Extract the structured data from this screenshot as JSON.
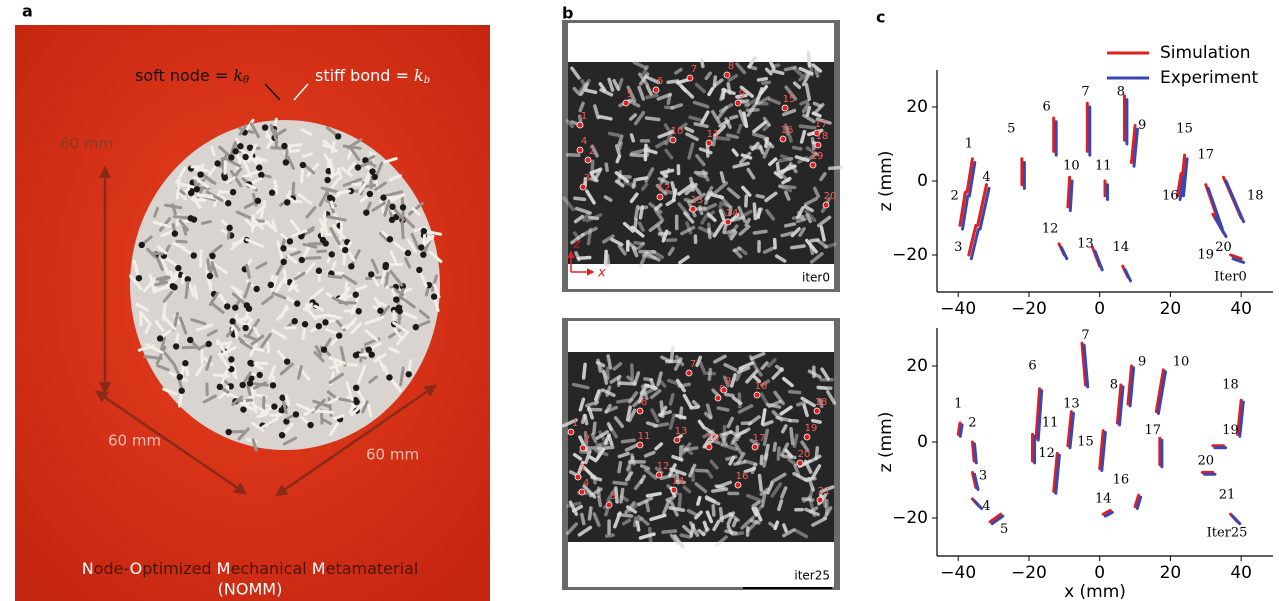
{
  "panel_a": {
    "label": "a",
    "soft_node": {
      "text": "soft node = ",
      "symbol": "k",
      "subscript": "θ"
    },
    "stiff_bond": {
      "text": "stiff bond = ",
      "symbol": "k",
      "subscript": "b"
    },
    "dimensions": [
      "60 mm",
      "60 mm",
      "60 mm"
    ],
    "title_parts": [
      "N",
      "ode-",
      "O",
      "ptimized ",
      "M",
      "echanical ",
      "M",
      "etamaterial"
    ],
    "subtitle": "(NOMM)"
  },
  "panel_b": {
    "label": "b",
    "axes": {
      "z": "z",
      "x": "x"
    },
    "images": [
      {
        "caption": "iter0",
        "markers": [
          "1",
          "2",
          "3",
          "4",
          "5",
          "6",
          "7",
          "8",
          "9",
          "10",
          "11",
          "12",
          "13",
          "14",
          "15",
          "16",
          "17",
          "18",
          "19",
          "20"
        ]
      },
      {
        "caption": "iter25",
        "markers": [
          "1",
          "2",
          "3",
          "4",
          "5",
          "6",
          "7",
          "8",
          "9",
          "10",
          "11",
          "12",
          "13",
          "14",
          "15",
          "16",
          "17",
          "18",
          "19",
          "20",
          "21"
        ]
      }
    ]
  },
  "panel_c": {
    "label": "c"
  },
  "chart_data": [
    {
      "type": "line",
      "ylabel": "z (mm)",
      "legend": "upper right",
      "xlim": [
        -46,
        49
      ],
      "ylim": [
        -30,
        30
      ],
      "xticks": [
        {
          "value": -40,
          "label": "−40"
        },
        {
          "value": -20,
          "label": "−20"
        },
        0,
        20,
        40
      ],
      "yticks": [
        {
          "value": -20,
          "label": "−20"
        },
        0,
        20
      ],
      "series": [
        {
          "name": "Simulation",
          "color": "#e02020",
          "x": [
            -37.5,
            -36,
            null,
            -39.5,
            -38,
            null,
            -37,
            -35,
            null,
            -34.5,
            -32,
            null,
            -22,
            -22,
            null,
            -13,
            -13,
            null,
            -3.5,
            -3.5,
            null,
            7,
            7,
            null,
            9,
            10,
            null,
            -9,
            -8.5,
            null,
            1.5,
            1.5,
            null,
            -11.5,
            -10,
            null,
            -2,
            0,
            null,
            6.5,
            8,
            null,
            23,
            24,
            null,
            22,
            23,
            null,
            30,
            34,
            null,
            35,
            40,
            null,
            32,
            35,
            null,
            37,
            40
          ],
          "values": [
            -3,
            6,
            null,
            -12,
            -3,
            null,
            -20,
            -12,
            null,
            -12,
            -1,
            null,
            -1,
            6,
            null,
            8,
            17,
            null,
            8,
            21,
            null,
            11,
            23,
            null,
            5,
            15,
            null,
            -7,
            1,
            null,
            -4,
            0,
            null,
            -17,
            -20,
            null,
            -18,
            -23,
            null,
            -23,
            -26,
            null,
            -3,
            7,
            null,
            -4,
            2,
            null,
            -1,
            -12,
            null,
            1,
            -10,
            null,
            -9,
            -14,
            null,
            -20,
            -21
          ]
        },
        {
          "name": "Experiment",
          "color": "#3a47b0",
          "x": [
            -36.8,
            -35.3,
            null,
            -38.8,
            -37.3,
            null,
            -36.3,
            -34.3,
            null,
            -33.8,
            -31.3,
            null,
            -21.3,
            -21.3,
            null,
            -12.3,
            -12.3,
            null,
            -2.8,
            -2.8,
            null,
            7.7,
            7.7,
            null,
            9.7,
            10.7,
            null,
            -8.3,
            -7.8,
            null,
            2.2,
            2.2,
            null,
            -10.8,
            -9.3,
            null,
            -1.3,
            0.7,
            null,
            7.2,
            8.7,
            null,
            23.7,
            24.7,
            null,
            22.7,
            23.7,
            null,
            30.7,
            34.7,
            null,
            35.7,
            40.7,
            null,
            32.7,
            35.7,
            null,
            37.7,
            40.7
          ],
          "values": [
            -4,
            5,
            null,
            -13,
            -4,
            null,
            -21,
            -13,
            null,
            -13,
            -2,
            null,
            -2,
            5,
            null,
            7,
            16,
            null,
            7,
            20,
            null,
            10,
            22,
            null,
            4,
            14,
            null,
            -8,
            0,
            null,
            -5,
            -1,
            null,
            -18,
            -21,
            null,
            -19,
            -24,
            null,
            -24,
            -27,
            null,
            -4,
            6,
            null,
            -5,
            1,
            null,
            -2,
            -13,
            null,
            0,
            -11,
            null,
            -10,
            -15,
            null,
            -21,
            -22
          ]
        }
      ],
      "annotations": [
        {
          "text": "1",
          "x": -37,
          "y": 10
        },
        {
          "text": "2",
          "x": -41,
          "y": -4
        },
        {
          "text": "3",
          "x": -40,
          "y": -18
        },
        {
          "text": "4",
          "x": -32,
          "y": 1
        },
        {
          "text": "5",
          "x": -25,
          "y": 14
        },
        {
          "text": "6",
          "x": -15,
          "y": 20
        },
        {
          "text": "7",
          "x": -4,
          "y": 24
        },
        {
          "text": "8",
          "x": 6,
          "y": 24
        },
        {
          "text": "9",
          "x": 12,
          "y": 15
        },
        {
          "text": "10",
          "x": -8,
          "y": 4
        },
        {
          "text": "11",
          "x": 1,
          "y": 4
        },
        {
          "text": "12",
          "x": -14,
          "y": -13
        },
        {
          "text": "13",
          "x": -4,
          "y": -17
        },
        {
          "text": "14",
          "x": 6,
          "y": -18
        },
        {
          "text": "15",
          "x": 24,
          "y": 14
        },
        {
          "text": "16",
          "x": 20,
          "y": -4
        },
        {
          "text": "17",
          "x": 30,
          "y": 7
        },
        {
          "text": "18",
          "x": 44,
          "y": -4
        },
        {
          "text": "19",
          "x": 30,
          "y": -20
        },
        {
          "text": "20",
          "x": 35,
          "y": -18
        },
        {
          "text": "Iter0",
          "x": 37,
          "y": -26
        }
      ]
    },
    {
      "type": "line",
      "ylabel": "z (mm)",
      "xlabel": "x (mm)",
      "xlim": [
        -46,
        49
      ],
      "ylim": [
        -30,
        30
      ],
      "xticks": [
        {
          "value": -40,
          "label": "−40"
        },
        {
          "value": -20,
          "label": "−20"
        },
        0,
        20,
        40
      ],
      "yticks": [
        {
          "value": -20,
          "label": "−20"
        },
        0,
        20
      ],
      "series": [
        {
          "color": "#e02020",
          "x": [
            -40,
            -39.5,
            null,
            -36,
            -35.5,
            null,
            -36,
            -35,
            null,
            -36,
            -34,
            null,
            -31,
            -28,
            null,
            -18,
            -17,
            null,
            -4,
            -5,
            null,
            5,
            6,
            null,
            8,
            9,
            null,
            16,
            18,
            null,
            -19,
            -19,
            null,
            -13,
            -12,
            null,
            -9,
            -8,
            null,
            1,
            3,
            null,
            0,
            1,
            null,
            10,
            11,
            null,
            17,
            17,
            null,
            39,
            40,
            null,
            32,
            35,
            null,
            29,
            32,
            null,
            37,
            39
          ],
          "values": [
            2,
            5,
            null,
            0,
            -5,
            null,
            -8,
            -12,
            null,
            -15,
            -17,
            null,
            -21,
            -19,
            null,
            1,
            14,
            null,
            15,
            26,
            null,
            5,
            15,
            null,
            10,
            20,
            null,
            8,
            19,
            null,
            -5,
            2,
            null,
            -13,
            -3,
            null,
            -1,
            8,
            null,
            -19,
            -18,
            null,
            -7,
            3,
            null,
            -17,
            -14,
            null,
            -6,
            1,
            null,
            2,
            11,
            null,
            -1,
            -1,
            null,
            -8,
            -8,
            null,
            -19,
            -21
          ]
        },
        {
          "color": "#3a47b0",
          "x": [
            -39.4,
            -38.9,
            null,
            -35.4,
            -34.9,
            null,
            -35.4,
            -34.4,
            null,
            -35.4,
            -33.4,
            null,
            -30.4,
            -27.4,
            null,
            -17.4,
            -16.4,
            null,
            -3.4,
            -4.4,
            null,
            5.6,
            6.6,
            null,
            8.6,
            9.6,
            null,
            16.6,
            18.6,
            null,
            -18.4,
            -18.4,
            null,
            -12.4,
            -11.4,
            null,
            -8.4,
            -7.4,
            null,
            1.6,
            3.6,
            null,
            0.6,
            1.6,
            null,
            10.6,
            11.6,
            null,
            17.6,
            17.6,
            null,
            39.6,
            40.6,
            null,
            32.6,
            35.6,
            null,
            29.6,
            32.6,
            null,
            37.6,
            39.6
          ],
          "values": [
            1.5,
            4.5,
            null,
            -0.5,
            -5.5,
            null,
            -8.5,
            -12.5,
            null,
            -15.5,
            -17.5,
            null,
            -21.5,
            -19.5,
            null,
            0.5,
            13.5,
            null,
            14.5,
            25.5,
            null,
            4.5,
            14.5,
            null,
            9.5,
            19.5,
            null,
            7.5,
            18.5,
            null,
            -5.5,
            1.5,
            null,
            -13.5,
            -3.5,
            null,
            -1.5,
            7.5,
            null,
            -19.5,
            -18.5,
            null,
            -7.5,
            2.5,
            null,
            -17.5,
            -14.5,
            null,
            -6.5,
            0.5,
            null,
            1.5,
            10.5,
            null,
            -1.5,
            -1.5,
            null,
            -8.5,
            -8.5,
            null,
            -19.5,
            -21.5
          ]
        }
      ],
      "annotations": [
        {
          "text": "1",
          "x": -40,
          "y": 10
        },
        {
          "text": "2",
          "x": -36,
          "y": 5
        },
        {
          "text": "3",
          "x": -33,
          "y": -9
        },
        {
          "text": "4",
          "x": -32,
          "y": -17
        },
        {
          "text": "5",
          "x": -27,
          "y": -23
        },
        {
          "text": "6",
          "x": -19,
          "y": 20
        },
        {
          "text": "7",
          "x": -4,
          "y": 28
        },
        {
          "text": "8",
          "x": 4,
          "y": 15
        },
        {
          "text": "9",
          "x": 12,
          "y": 21
        },
        {
          "text": "10",
          "x": 23,
          "y": 21
        },
        {
          "text": "11",
          "x": -14,
          "y": 5
        },
        {
          "text": "12",
          "x": -15,
          "y": -3
        },
        {
          "text": "13",
          "x": -8,
          "y": 10
        },
        {
          "text": "14",
          "x": 1,
          "y": -15
        },
        {
          "text": "15",
          "x": -4,
          "y": 0
        },
        {
          "text": "16",
          "x": 6,
          "y": -10
        },
        {
          "text": "17",
          "x": 15,
          "y": 3
        },
        {
          "text": "18",
          "x": 37,
          "y": 15
        },
        {
          "text": "19",
          "x": 37,
          "y": 3
        },
        {
          "text": "20",
          "x": 30,
          "y": -5
        },
        {
          "text": "21",
          "x": 36,
          "y": -14
        },
        {
          "text": "Iter25",
          "x": 36,
          "y": -24
        }
      ]
    }
  ]
}
